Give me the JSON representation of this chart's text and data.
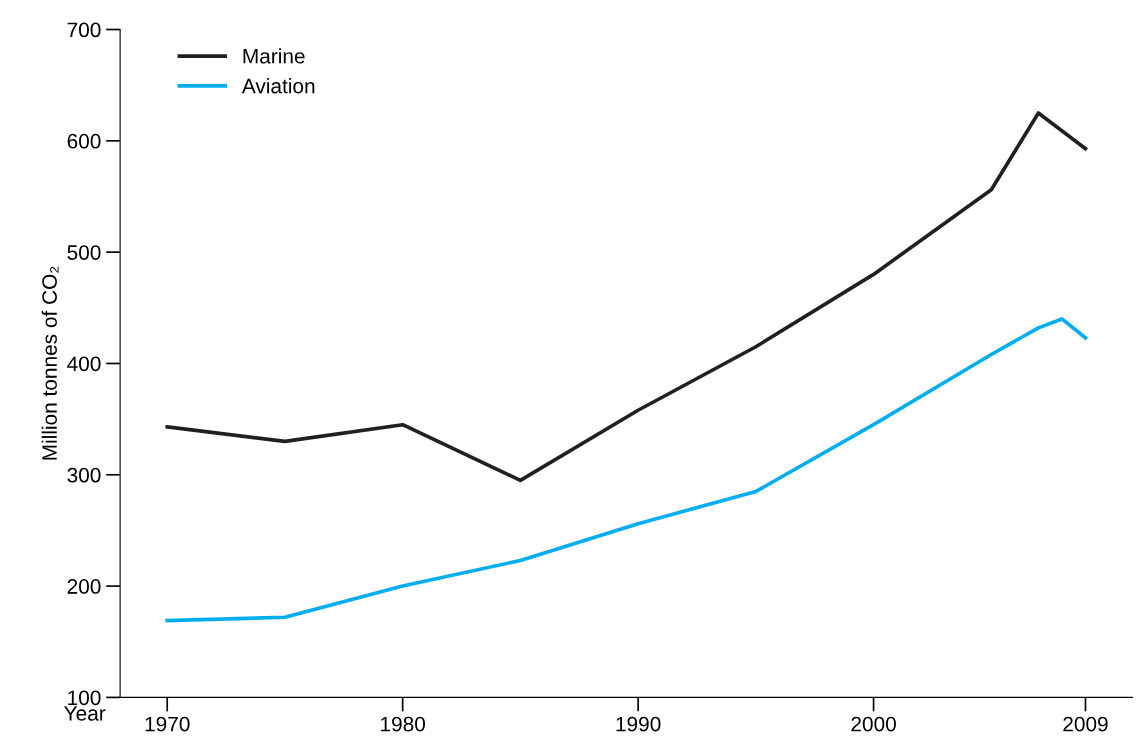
{
  "chart_data": {
    "type": "line",
    "xlabel": "Year",
    "ylabel": "Million tonnes of CO₂",
    "xlim": [
      1968,
      2011
    ],
    "xticks": [
      1970,
      1980,
      1990,
      2000,
      2009
    ],
    "ylim": [
      100,
      700
    ],
    "yticks": [
      100,
      200,
      300,
      400,
      500,
      600,
      700
    ],
    "grid": false,
    "legend": "top left",
    "marker": "none",
    "line_style": "solid",
    "series": [
      {
        "name": "Marine",
        "color": "#231f20",
        "x": [
          1970,
          1975,
          1980,
          1985,
          1990,
          1995,
          2000,
          2005,
          2007,
          2009
        ],
        "values": [
          343,
          330,
          345,
          295,
          358,
          415,
          480,
          556,
          625,
          593
        ]
      },
      {
        "name": "Aviation",
        "color": "#00aeef",
        "x": [
          1970,
          1975,
          1980,
          1985,
          1990,
          1995,
          2000,
          2005,
          2007,
          2008,
          2009
        ],
        "values": [
          169,
          172,
          200,
          223,
          256,
          285,
          345,
          408,
          432,
          440,
          423
        ]
      }
    ]
  }
}
